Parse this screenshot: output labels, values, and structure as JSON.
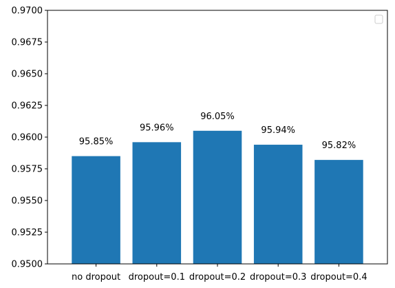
{
  "chart_data": {
    "type": "bar",
    "categories": [
      "no dropout",
      "dropout=0.1",
      "dropout=0.2",
      "dropout=0.3",
      "dropout=0.4"
    ],
    "values": [
      0.9585,
      0.9596,
      0.9605,
      0.9594,
      0.9582
    ],
    "data_labels": [
      "95.85%",
      "95.96%",
      "96.05%",
      "95.94%",
      "95.82%"
    ],
    "title": "",
    "xlabel": "",
    "ylabel": "",
    "ylim": [
      0.95,
      0.97
    ],
    "yticks": [
      0.95,
      0.9525,
      0.955,
      0.9575,
      0.96,
      0.9625,
      0.965,
      0.9675,
      0.97
    ],
    "ytick_labels": [
      "0.9500",
      "0.9525",
      "0.9550",
      "0.9575",
      "0.9600",
      "0.9625",
      "0.9650",
      "0.9675",
      "0.9700"
    ],
    "grid": false,
    "legend": {
      "placement": "top-right",
      "entries": []
    },
    "colors": {
      "bar": "#1f77b4",
      "axis": "#000000"
    }
  }
}
